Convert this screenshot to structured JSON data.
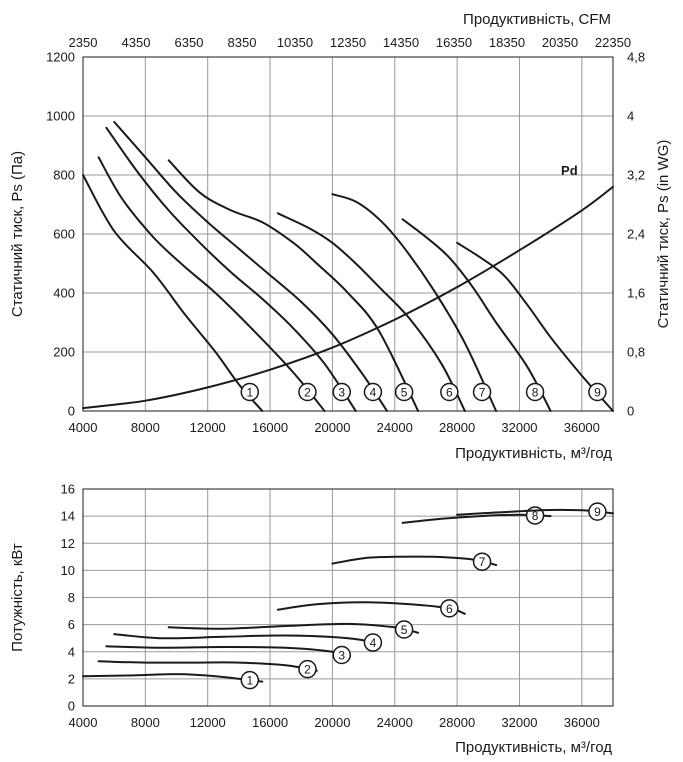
{
  "chart_data": [
    {
      "type": "line",
      "title": "",
      "xlabel": "Продуктивність, м³/год",
      "ylabel": "Статичний тиск, Ps (Па)",
      "xlim": [
        4000,
        38000
      ],
      "ylim": [
        0,
        1200
      ],
      "x_ticks": [
        4000,
        8000,
        12000,
        16000,
        20000,
        24000,
        28000,
        32000,
        36000
      ],
      "y_ticks": [
        0,
        200,
        400,
        600,
        800,
        1000,
        1200
      ],
      "top_axis": {
        "label": "Продуктивність, CFM",
        "ticks": [
          "2350",
          "4350",
          "6350",
          "8350",
          "10350",
          "12350",
          "14350",
          "16350",
          "18350",
          "20350",
          "22350"
        ]
      },
      "right_axis": {
        "label": "Статичний тиск, Ps (in WG)",
        "ticks": [
          "0",
          "0,8",
          "1,6",
          "2,4",
          "3,2",
          "4",
          "4,8"
        ]
      },
      "grid": true,
      "series": [
        {
          "name": "1",
          "x": [
            4000,
            6000,
            8500,
            10500,
            12500,
            14000,
            15500
          ],
          "y": [
            800,
            610,
            470,
            330,
            200,
            90,
            0
          ],
          "marker_x": 14700
        },
        {
          "name": "2",
          "x": [
            5000,
            6500,
            8500,
            10500,
            12500,
            15000,
            17500,
            19500
          ],
          "y": [
            860,
            720,
            590,
            490,
            400,
            270,
            130,
            0
          ],
          "marker_x": 18400
        },
        {
          "name": "3",
          "x": [
            5500,
            7500,
            9500,
            11500,
            13500,
            15500,
            17500,
            19500,
            21500
          ],
          "y": [
            960,
            810,
            680,
            570,
            470,
            380,
            280,
            160,
            0
          ],
          "marker_x": 20600
        },
        {
          "name": "4",
          "x": [
            6000,
            8000,
            10000,
            12000,
            14000,
            16000,
            18000,
            20000,
            22000,
            23500
          ],
          "y": [
            980,
            860,
            740,
            640,
            550,
            460,
            370,
            260,
            120,
            0
          ],
          "marker_x": 22600
        },
        {
          "name": "5",
          "x": [
            9500,
            11500,
            13500,
            15500,
            17500,
            19000,
            21000,
            23000,
            25500
          ],
          "y": [
            850,
            740,
            680,
            640,
            570,
            500,
            400,
            270,
            0
          ],
          "marker_x": 24600
        },
        {
          "name": "6",
          "x": [
            16500,
            18500,
            20000,
            21500,
            23000,
            25000,
            27000,
            28500
          ],
          "y": [
            670,
            620,
            570,
            500,
            420,
            310,
            160,
            0
          ],
          "marker_x": 27500
        },
        {
          "name": "7",
          "x": [
            20000,
            21500,
            23000,
            24500,
            26500,
            28500,
            30500
          ],
          "y": [
            735,
            710,
            650,
            560,
            410,
            230,
            0
          ],
          "marker_x": 29600
        },
        {
          "name": "8",
          "x": [
            24500,
            26000,
            27500,
            29000,
            30500,
            32500,
            34000
          ],
          "y": [
            650,
            590,
            520,
            420,
            300,
            150,
            0
          ],
          "marker_x": 33000
        },
        {
          "name": "9",
          "x": [
            28000,
            29500,
            31000,
            32500,
            34000,
            36000,
            38000
          ],
          "y": [
            570,
            520,
            460,
            360,
            250,
            120,
            0
          ],
          "marker_x": 37000
        },
        {
          "name": "Pd",
          "x": [
            4000,
            8000,
            12000,
            16000,
            20000,
            24000,
            28000,
            32000,
            36000,
            38000
          ],
          "y": [
            10,
            35,
            80,
            140,
            215,
            310,
            420,
            545,
            680,
            760
          ],
          "label_x": 35200,
          "label_y": 800
        }
      ]
    },
    {
      "type": "line",
      "title": "",
      "xlabel": "Продуктивність, м³/год",
      "ylabel": "Потужність, кВт",
      "xlim": [
        4000,
        38000
      ],
      "ylim": [
        0,
        16
      ],
      "x_ticks": [
        4000,
        8000,
        12000,
        16000,
        20000,
        24000,
        28000,
        32000,
        36000
      ],
      "y_ticks": [
        0,
        2,
        4,
        6,
        8,
        10,
        12,
        14,
        16
      ],
      "grid": true,
      "series": [
        {
          "name": "1",
          "x": [
            4000,
            7000,
            10000,
            12500,
            15500
          ],
          "y": [
            2.2,
            2.25,
            2.35,
            2.2,
            1.8
          ],
          "marker_x": 14700
        },
        {
          "name": "2",
          "x": [
            5000,
            8000,
            11000,
            14000,
            17000,
            19000
          ],
          "y": [
            3.3,
            3.2,
            3.2,
            3.2,
            3.0,
            2.6
          ],
          "marker_x": 18400
        },
        {
          "name": "3",
          "x": [
            5500,
            9000,
            13000,
            17000,
            20000,
            21000
          ],
          "y": [
            4.4,
            4.3,
            4.35,
            4.3,
            4.0,
            3.6
          ],
          "marker_x": 20600
        },
        {
          "name": "4",
          "x": [
            6000,
            9000,
            13000,
            17000,
            21000,
            23000
          ],
          "y": [
            5.3,
            5.0,
            5.1,
            5.2,
            5.0,
            4.6
          ],
          "marker_x": 22600
        },
        {
          "name": "5",
          "x": [
            9500,
            13000,
            17000,
            21000,
            24000,
            25500
          ],
          "y": [
            5.8,
            5.7,
            5.9,
            6.05,
            5.8,
            5.4
          ],
          "marker_x": 24600
        },
        {
          "name": "6",
          "x": [
            16500,
            19000,
            22000,
            25000,
            27500,
            28500
          ],
          "y": [
            7.1,
            7.5,
            7.65,
            7.5,
            7.2,
            6.8
          ],
          "marker_x": 27500
        },
        {
          "name": "7",
          "x": [
            20000,
            22000,
            24000,
            26500,
            29000,
            30500
          ],
          "y": [
            10.5,
            10.9,
            11.0,
            11.0,
            10.8,
            10.4
          ],
          "marker_x": 29600
        },
        {
          "name": "8",
          "x": [
            24500,
            27000,
            29500,
            32000,
            34000
          ],
          "y": [
            13.5,
            13.8,
            14.0,
            14.1,
            14.0
          ],
          "marker_x": 33000
        },
        {
          "name": "9",
          "x": [
            28000,
            31000,
            34000,
            36500,
            38000
          ],
          "y": [
            14.1,
            14.3,
            14.45,
            14.4,
            14.2
          ],
          "marker_x": 37000
        }
      ]
    }
  ]
}
